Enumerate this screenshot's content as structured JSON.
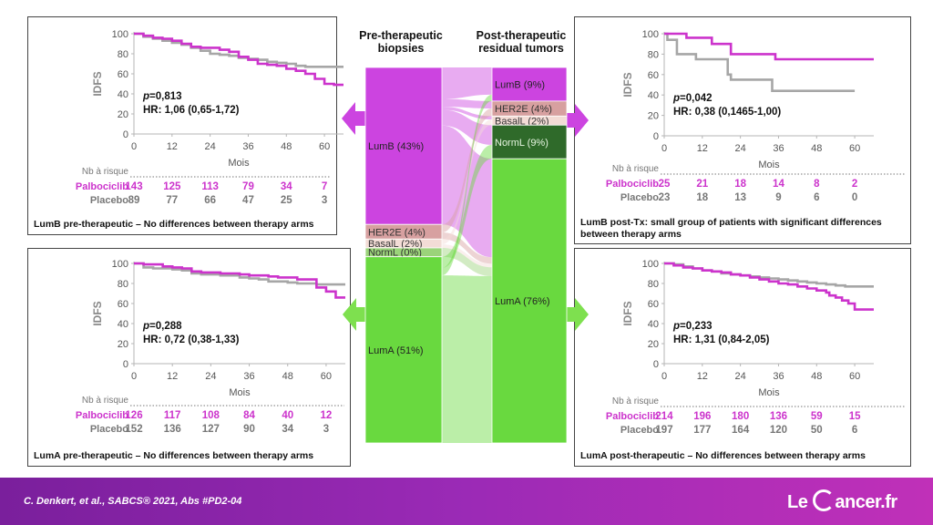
{
  "header": {
    "pre_title": "Pre-therapeutic\nbiopsies",
    "post_title": "Post-therapeutic\nresidual tumors"
  },
  "sankey": {
    "pre": [
      {
        "label": "LumB (43%)",
        "pct": 43,
        "color": "#cc44e0"
      },
      {
        "label": "HER2E (4%)",
        "pct": 4,
        "color": "#d7a0a0"
      },
      {
        "label": "BasalL (2%)",
        "pct": 2,
        "color": "#f3dcd6"
      },
      {
        "label": "NormL (0%)",
        "pct": 0,
        "color": "#9bd37a"
      },
      {
        "label": "LumA (51%)",
        "pct": 51,
        "color": "#69d93f"
      }
    ],
    "post": [
      {
        "label": "LumB (9%)",
        "pct": 9,
        "color": "#cc44e0"
      },
      {
        "label": "HER2E (4%)",
        "pct": 4,
        "color": "#d7a0a0"
      },
      {
        "label": "BasalL (2%)",
        "pct": 2,
        "color": "#f3dcd6"
      },
      {
        "label": "NormL (9%)",
        "pct": 9,
        "color": "#2f6a2a"
      },
      {
        "label": "LumA (76%)",
        "pct": 76,
        "color": "#69d93f"
      }
    ]
  },
  "colors": {
    "palbociclib": "#cc33cc",
    "placebo": "#a6a6a6",
    "arrow_lumb": "#cc44e0",
    "arrow_luma": "#7ee04f"
  },
  "chart_data": [
    {
      "type": "line",
      "id": "lumb_pre",
      "ylabel": "IDFS",
      "xlabel": "Mois",
      "x_ticks": [
        0,
        12,
        24,
        36,
        48,
        60
      ],
      "y_ticks": [
        0,
        20,
        40,
        60,
        80,
        100
      ],
      "xlim": [
        0,
        66
      ],
      "ylim": [
        0,
        100
      ],
      "p_value": "=0,813",
      "hr": "HR: 1,06 (0,65-1,72)",
      "risk_label": "Nb à risque",
      "series": [
        {
          "name": "Palbociclib",
          "color": "#cc33cc",
          "x": [
            0,
            3,
            6,
            9,
            12,
            15,
            18,
            21,
            24,
            27,
            30,
            33,
            36,
            39,
            42,
            45,
            48,
            51,
            54,
            57,
            60,
            63,
            66
          ],
          "y": [
            100,
            98,
            96,
            95,
            93,
            90,
            87,
            86,
            86,
            84,
            82,
            77,
            74,
            70,
            69,
            68,
            65,
            63,
            60,
            55,
            50,
            49,
            49
          ],
          "at_risk": [
            "143",
            "125",
            "113",
            "79",
            "34",
            "7"
          ]
        },
        {
          "name": "Placebo",
          "color": "#a6a6a6",
          "x": [
            0,
            3,
            6,
            9,
            12,
            15,
            18,
            21,
            24,
            27,
            30,
            33,
            36,
            39,
            42,
            45,
            48,
            51,
            54,
            57,
            60,
            63,
            66
          ],
          "y": [
            100,
            97,
            95,
            93,
            91,
            89,
            86,
            83,
            80,
            79,
            78,
            76,
            75,
            74,
            72,
            71,
            70,
            68,
            67,
            67,
            67,
            67,
            67
          ],
          "at_risk": [
            "89",
            "77",
            "66",
            "47",
            "25",
            "3"
          ]
        }
      ],
      "caption": "LumB pre-therapeutic – No differences between therapy arms"
    },
    {
      "type": "line",
      "id": "lumb_post",
      "ylabel": "IDFS",
      "xlabel": "Mois",
      "x_ticks": [
        0,
        12,
        24,
        36,
        48,
        60
      ],
      "y_ticks": [
        0,
        20,
        40,
        60,
        80,
        100
      ],
      "xlim": [
        0,
        66
      ],
      "ylim": [
        0,
        100
      ],
      "p_value": "=0,042",
      "hr": "HR: 0,38 (0,1465-1,00)",
      "risk_label": "Nb à risque",
      "series": [
        {
          "name": "Palbociclib",
          "color": "#cc33cc",
          "x": [
            0,
            6,
            7,
            14,
            15,
            20,
            21,
            34,
            35,
            48,
            66
          ],
          "y": [
            100,
            100,
            96,
            96,
            90,
            90,
            80,
            80,
            75,
            75,
            75
          ],
          "at_risk": [
            "25",
            "21",
            "18",
            "14",
            "8",
            "2"
          ]
        },
        {
          "name": "Placebo",
          "color": "#a6a6a6",
          "x": [
            0,
            1,
            2,
            4,
            5,
            10,
            11,
            20,
            21,
            33,
            34,
            60
          ],
          "y": [
            100,
            94,
            94,
            80,
            80,
            75,
            75,
            60,
            55,
            55,
            44,
            44
          ],
          "at_risk": [
            "23",
            "18",
            "13",
            "9",
            "6",
            "0"
          ]
        }
      ],
      "caption": "LumB post-Tx: small group of patients with significant differences between therapy arms"
    },
    {
      "type": "line",
      "id": "luma_pre",
      "ylabel": "IDFS",
      "xlabel": "Mois",
      "x_ticks": [
        0,
        12,
        24,
        36,
        48,
        60
      ],
      "y_ticks": [
        0,
        20,
        40,
        60,
        80,
        100
      ],
      "xlim": [
        0,
        66
      ],
      "ylim": [
        0,
        100
      ],
      "p_value": "=0,288",
      "hr": "HR: 0,72 (0,38-1,33)",
      "risk_label": "Nb à risque",
      "series": [
        {
          "name": "Palbociclib",
          "color": "#cc33cc",
          "x": [
            0,
            3,
            6,
            9,
            12,
            15,
            18,
            21,
            24,
            27,
            30,
            33,
            36,
            39,
            42,
            45,
            48,
            51,
            54,
            57,
            60,
            63,
            66
          ],
          "y": [
            100,
            99,
            99,
            97,
            96,
            95,
            92,
            91,
            91,
            90,
            90,
            89,
            88,
            88,
            87,
            86,
            86,
            84,
            84,
            76,
            72,
            66,
            66
          ],
          "at_risk": [
            "126",
            "117",
            "108",
            "84",
            "40",
            "12"
          ]
        },
        {
          "name": "Placebo",
          "color": "#a6a6a6",
          "x": [
            0,
            3,
            6,
            9,
            12,
            15,
            18,
            21,
            24,
            27,
            30,
            33,
            36,
            39,
            42,
            45,
            48,
            51,
            54,
            57,
            60,
            63,
            66
          ],
          "y": [
            100,
            96,
            95,
            95,
            94,
            93,
            90,
            89,
            89,
            88,
            88,
            86,
            85,
            84,
            82,
            82,
            81,
            80,
            80,
            79,
            79,
            79,
            79
          ],
          "at_risk": [
            "152",
            "136",
            "127",
            "90",
            "34",
            "3"
          ]
        }
      ],
      "caption": "LumA pre-therapeutic – No differences between therapy arms"
    },
    {
      "type": "line",
      "id": "luma_post",
      "ylabel": "IDFS",
      "xlabel": "Mois",
      "x_ticks": [
        0,
        12,
        24,
        36,
        48,
        60
      ],
      "y_ticks": [
        0,
        20,
        40,
        60,
        80,
        100
      ],
      "xlim": [
        0,
        66
      ],
      "ylim": [
        0,
        100
      ],
      "p_value": "=0,233",
      "hr": "HR: 1,31 (0,84-2,05)",
      "risk_label": "Nb à risque",
      "series": [
        {
          "name": "Palbociclib",
          "color": "#cc33cc",
          "x": [
            0,
            3,
            6,
            9,
            12,
            15,
            18,
            21,
            24,
            27,
            30,
            33,
            36,
            39,
            42,
            45,
            48,
            51,
            52,
            54,
            56,
            58,
            60,
            66
          ],
          "y": [
            100,
            98,
            96,
            95,
            93,
            92,
            91,
            89,
            88,
            86,
            84,
            82,
            80,
            79,
            77,
            75,
            73,
            71,
            68,
            66,
            63,
            60,
            54,
            54
          ],
          "at_risk": [
            "214",
            "196",
            "180",
            "136",
            "59",
            "15"
          ]
        },
        {
          "name": "Placebo",
          "color": "#a6a6a6",
          "x": [
            0,
            3,
            6,
            9,
            12,
            15,
            18,
            21,
            24,
            27,
            30,
            33,
            36,
            39,
            42,
            45,
            48,
            51,
            54,
            57,
            60,
            63,
            66
          ],
          "y": [
            100,
            99,
            97,
            95,
            93,
            92,
            90,
            89,
            88,
            87,
            86,
            85,
            84,
            83,
            82,
            81,
            80,
            79,
            78,
            77,
            77,
            77,
            77
          ],
          "at_risk": [
            "197",
            "177",
            "164",
            "120",
            "50",
            "6"
          ]
        }
      ],
      "caption": "LumA post-therapeutic – No differences between therapy arms"
    }
  ],
  "footer": {
    "citation": "C. Denkert, et al., SABCS® 2021, Abs #PD2-04",
    "logo_left": "Le ",
    "logo_right": "ancer.fr"
  }
}
